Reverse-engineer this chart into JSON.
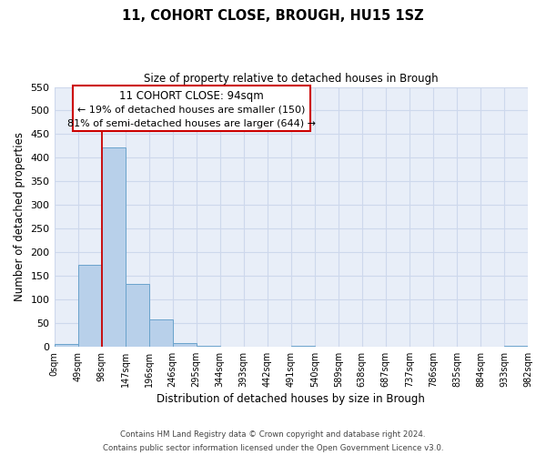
{
  "title": "11, COHORT CLOSE, BROUGH, HU15 1SZ",
  "subtitle": "Size of property relative to detached houses in Brough",
  "xlabel": "Distribution of detached houses by size in Brough",
  "ylabel": "Number of detached properties",
  "bar_left_edges": [
    0,
    49,
    98,
    147,
    196,
    245,
    294,
    343,
    392,
    441,
    490,
    539,
    588,
    637,
    686,
    735,
    784,
    833,
    882,
    931
  ],
  "bar_widths": [
    49,
    49,
    49,
    49,
    49,
    49,
    49,
    49,
    49,
    49,
    49,
    49,
    49,
    49,
    49,
    49,
    49,
    49,
    49,
    49
  ],
  "bar_heights": [
    5,
    173,
    422,
    133,
    58,
    8,
    2,
    0,
    0,
    0,
    2,
    0,
    0,
    0,
    0,
    0,
    0,
    0,
    0,
    2
  ],
  "tick_labels": [
    "0sqm",
    "49sqm",
    "98sqm",
    "147sqm",
    "196sqm",
    "246sqm",
    "295sqm",
    "344sqm",
    "393sqm",
    "442sqm",
    "491sqm",
    "540sqm",
    "589sqm",
    "638sqm",
    "687sqm",
    "737sqm",
    "786sqm",
    "835sqm",
    "884sqm",
    "933sqm",
    "982sqm"
  ],
  "tick_positions": [
    0,
    49,
    98,
    147,
    196,
    245,
    294,
    343,
    392,
    441,
    490,
    539,
    588,
    637,
    686,
    735,
    784,
    833,
    882,
    931,
    980
  ],
  "bar_color": "#b8d0ea",
  "bar_edge_color": "#6aa3cc",
  "highlight_line_x": 98,
  "xlim": [
    0,
    980
  ],
  "ylim": [
    0,
    550
  ],
  "yticks": [
    0,
    50,
    100,
    150,
    200,
    250,
    300,
    350,
    400,
    450,
    500,
    550
  ],
  "annotation_title": "11 COHORT CLOSE: 94sqm",
  "annotation_line1": "← 19% of detached houses are smaller (150)",
  "annotation_line2": "81% of semi-detached houses are larger (644) →",
  "footer_line1": "Contains HM Land Registry data © Crown copyright and database right 2024.",
  "footer_line2": "Contains public sector information licensed under the Open Government Licence v3.0.",
  "grid_color": "#cdd8ec",
  "background_color": "#e8eef8"
}
